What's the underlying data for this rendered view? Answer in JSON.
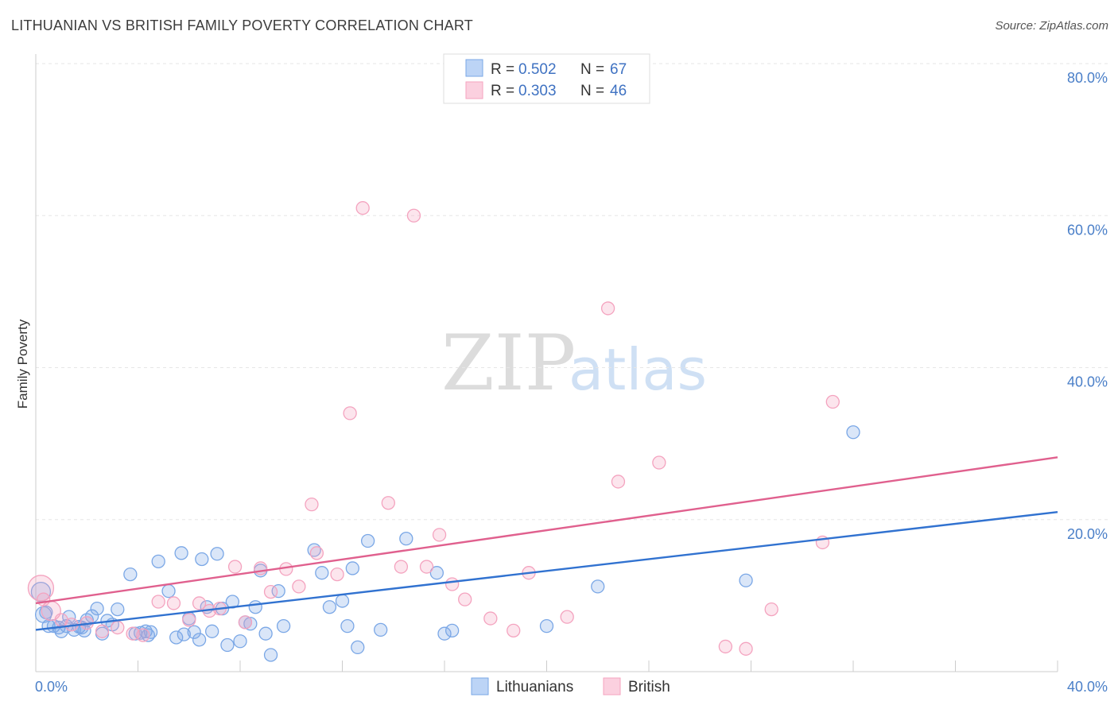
{
  "title": "LITHUANIAN VS BRITISH FAMILY POVERTY CORRELATION CHART",
  "source": "Source: ZipAtlas.com",
  "watermark": {
    "zip": "ZIP",
    "atlas": "atlas"
  },
  "chart_data": {
    "type": "scatter",
    "title": "LITHUANIAN VS BRITISH FAMILY POVERTY CORRELATION CHART",
    "xlabel": "",
    "ylabel": "Family Poverty",
    "xlim": [
      0,
      40
    ],
    "ylim": [
      0,
      80
    ],
    "x_tick_labels": [
      {
        "value": 0,
        "label": "0.0%"
      },
      {
        "value": 40,
        "label": "40.0%"
      }
    ],
    "y_tick_labels": [
      {
        "value": 20,
        "label": "20.0%"
      },
      {
        "value": 40,
        "label": "40.0%"
      },
      {
        "value": 60,
        "label": "60.0%"
      },
      {
        "value": 80,
        "label": "80.0%"
      }
    ],
    "grid": true,
    "legend_position": "top-center",
    "stats": [
      {
        "r_label": "R =",
        "r_value": "0.502",
        "n_label": "N =",
        "n_value": "67"
      },
      {
        "r_label": "R =",
        "r_value": "0.303",
        "n_label": "N =",
        "n_value": "46"
      }
    ],
    "series": [
      {
        "name": "Lithuanians",
        "color": "#7aa7e6",
        "line_color": "#3172d0",
        "trend": {
          "x": [
            0,
            40
          ],
          "y": [
            5.5,
            21.0
          ]
        },
        "points": [
          [
            0.2,
            10.5
          ],
          [
            0.3,
            7.5
          ],
          [
            0.5,
            6.0
          ],
          [
            0.7,
            6.0
          ],
          [
            0.9,
            5.8
          ],
          [
            1.0,
            5.3
          ],
          [
            1.2,
            6.0
          ],
          [
            1.3,
            7.2
          ],
          [
            1.5,
            5.5
          ],
          [
            1.7,
            5.9
          ],
          [
            1.9,
            5.4
          ],
          [
            2.0,
            6.8
          ],
          [
            2.2,
            7.3
          ],
          [
            2.4,
            8.3
          ],
          [
            2.6,
            5.0
          ],
          [
            2.8,
            6.7
          ],
          [
            3.2,
            8.2
          ],
          [
            3.7,
            12.8
          ],
          [
            3.9,
            5.0
          ],
          [
            4.1,
            5.1
          ],
          [
            4.3,
            5.3
          ],
          [
            4.5,
            5.2
          ],
          [
            4.8,
            14.5
          ],
          [
            5.2,
            10.6
          ],
          [
            5.5,
            4.5
          ],
          [
            5.7,
            15.6
          ],
          [
            5.8,
            4.9
          ],
          [
            6.0,
            7.0
          ],
          [
            6.2,
            5.2
          ],
          [
            6.4,
            4.2
          ],
          [
            6.5,
            14.8
          ],
          [
            6.7,
            8.5
          ],
          [
            6.9,
            5.3
          ],
          [
            7.1,
            15.5
          ],
          [
            7.3,
            8.3
          ],
          [
            7.5,
            3.5
          ],
          [
            7.7,
            9.2
          ],
          [
            8.0,
            4.0
          ],
          [
            8.2,
            6.5
          ],
          [
            8.4,
            6.3
          ],
          [
            8.6,
            8.5
          ],
          [
            8.8,
            13.3
          ],
          [
            9.0,
            5.0
          ],
          [
            9.2,
            2.2
          ],
          [
            9.5,
            10.6
          ],
          [
            9.7,
            6.0
          ],
          [
            10.9,
            16.0
          ],
          [
            11.2,
            13.0
          ],
          [
            11.5,
            8.5
          ],
          [
            12.0,
            9.3
          ],
          [
            12.2,
            6.0
          ],
          [
            12.4,
            13.6
          ],
          [
            12.6,
            3.2
          ],
          [
            13.0,
            17.2
          ],
          [
            13.5,
            5.5
          ],
          [
            14.5,
            17.5
          ],
          [
            15.7,
            13.0
          ],
          [
            16.0,
            5.0
          ],
          [
            16.3,
            5.4
          ],
          [
            20.0,
            6.0
          ],
          [
            22.0,
            11.2
          ],
          [
            27.8,
            12.0
          ],
          [
            32.0,
            31.5
          ],
          [
            1.8,
            5.8
          ],
          [
            3.0,
            6.2
          ],
          [
            4.4,
            4.8
          ],
          [
            0.4,
            7.8
          ]
        ],
        "sizes": [
          12,
          10,
          8,
          8,
          8,
          8,
          8,
          8,
          8,
          8,
          8,
          8,
          8,
          8,
          8,
          8,
          8,
          8,
          8,
          8,
          8,
          8,
          8,
          8,
          8,
          8,
          8,
          8,
          8,
          8,
          8,
          8,
          8,
          8,
          8,
          8,
          8,
          8,
          8,
          8,
          8,
          8,
          8,
          8,
          8,
          8,
          8,
          8,
          8,
          8,
          8,
          8,
          8,
          8,
          8,
          8,
          8,
          8,
          8,
          8,
          8,
          8,
          8,
          8,
          8,
          8,
          8
        ]
      },
      {
        "name": "British",
        "color": "#f4a3bf",
        "line_color": "#e0608e",
        "trend": {
          "x": [
            0,
            40
          ],
          "y": [
            9.0,
            28.2
          ]
        },
        "points": [
          [
            0.2,
            11.0
          ],
          [
            0.6,
            8.0
          ],
          [
            1.0,
            6.8
          ],
          [
            1.4,
            6.2
          ],
          [
            2.0,
            6.4
          ],
          [
            2.6,
            5.3
          ],
          [
            3.2,
            5.8
          ],
          [
            3.8,
            5.0
          ],
          [
            4.2,
            4.8
          ],
          [
            4.8,
            9.2
          ],
          [
            5.4,
            9.0
          ],
          [
            6.0,
            6.8
          ],
          [
            6.4,
            9.0
          ],
          [
            6.8,
            8.0
          ],
          [
            7.2,
            8.3
          ],
          [
            7.8,
            13.8
          ],
          [
            8.2,
            6.5
          ],
          [
            8.8,
            13.6
          ],
          [
            9.2,
            10.5
          ],
          [
            9.8,
            13.5
          ],
          [
            10.3,
            11.2
          ],
          [
            10.8,
            22.0
          ],
          [
            11.0,
            15.6
          ],
          [
            11.8,
            12.8
          ],
          [
            12.3,
            34.0
          ],
          [
            12.8,
            61.0
          ],
          [
            13.8,
            22.2
          ],
          [
            14.3,
            13.8
          ],
          [
            14.8,
            60.0
          ],
          [
            15.3,
            13.8
          ],
          [
            15.8,
            18.0
          ],
          [
            16.3,
            11.5
          ],
          [
            16.8,
            9.5
          ],
          [
            17.8,
            7.0
          ],
          [
            18.7,
            5.4
          ],
          [
            19.3,
            13.0
          ],
          [
            20.8,
            7.2
          ],
          [
            22.4,
            47.8
          ],
          [
            22.8,
            25.0
          ],
          [
            24.4,
            27.5
          ],
          [
            27.0,
            3.3
          ],
          [
            27.8,
            3.0
          ],
          [
            28.8,
            8.2
          ],
          [
            30.8,
            17.0
          ],
          [
            31.2,
            35.5
          ],
          [
            0.3,
            9.5
          ]
        ],
        "sizes": [
          16,
          12,
          8,
          8,
          8,
          8,
          8,
          8,
          8,
          8,
          8,
          8,
          8,
          8,
          8,
          8,
          8,
          8,
          8,
          8,
          8,
          8,
          8,
          8,
          8,
          8,
          8,
          8,
          8,
          8,
          8,
          8,
          8,
          8,
          8,
          8,
          8,
          8,
          8,
          8,
          8,
          8,
          8,
          8,
          8,
          8
        ]
      }
    ]
  }
}
